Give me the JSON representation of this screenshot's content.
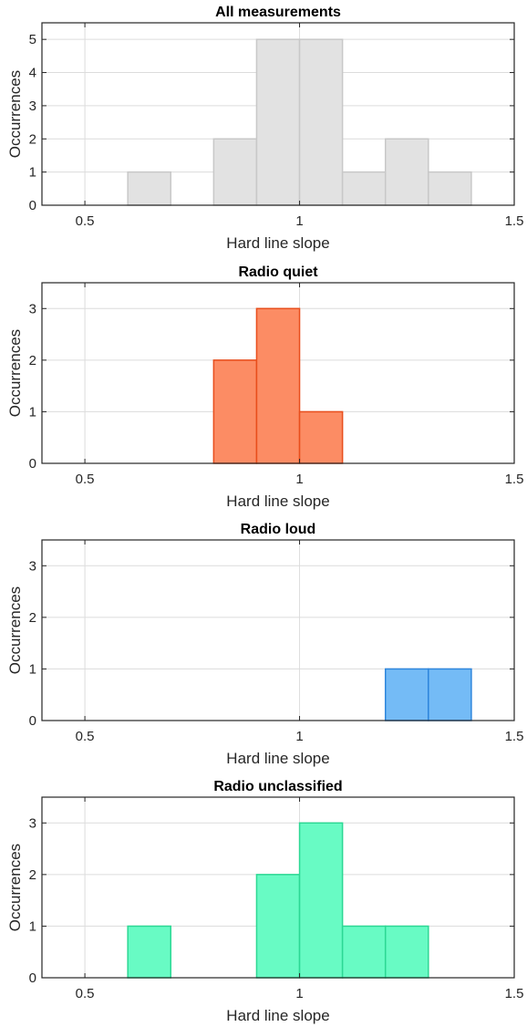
{
  "chart_data": [
    {
      "type": "bar",
      "title": "All measurements",
      "xlabel": "Hard line slope",
      "ylabel": "Occurrences",
      "xlim": [
        0.4,
        1.5
      ],
      "ylim": [
        0,
        5.5
      ],
      "xticks": [
        "0.5",
        "1",
        "1.5"
      ],
      "yticks": [
        "0",
        "1",
        "2",
        "3",
        "4",
        "5"
      ],
      "grid": true,
      "bin_edges": [
        0.6,
        0.7,
        0.8,
        0.9,
        1.0,
        1.1,
        1.2,
        1.3,
        1.4
      ],
      "values": [
        1,
        0,
        2,
        5,
        5,
        1,
        2,
        1
      ],
      "face_color": "#e2e2e2",
      "edge_color": "#c8c8c8"
    },
    {
      "type": "bar",
      "title": "Radio quiet",
      "xlabel": "Hard line slope",
      "ylabel": "Occurrences",
      "xlim": [
        0.4,
        1.5
      ],
      "ylim": [
        0,
        3.5
      ],
      "xticks": [
        "0.5",
        "1",
        "1.5"
      ],
      "yticks": [
        "0",
        "1",
        "2",
        "3"
      ],
      "grid": true,
      "bin_edges": [
        0.8,
        0.9,
        1.0,
        1.1
      ],
      "values": [
        2,
        3,
        1
      ],
      "face_color": "#fc8c64",
      "edge_color": "#e84e1c"
    },
    {
      "type": "bar",
      "title": "Radio loud",
      "xlabel": "Hard line slope",
      "ylabel": "Occurrences",
      "xlim": [
        0.4,
        1.5
      ],
      "ylim": [
        0,
        3.5
      ],
      "xticks": [
        "0.5",
        "1",
        "1.5"
      ],
      "yticks": [
        "0",
        "1",
        "2",
        "3"
      ],
      "grid": true,
      "bin_edges": [
        1.2,
        1.3,
        1.4
      ],
      "values": [
        1,
        1
      ],
      "face_color": "#74bbf6",
      "edge_color": "#2f86dc"
    },
    {
      "type": "bar",
      "title": "Radio unclassified",
      "xlabel": "Hard line slope",
      "ylabel": "Occurrences",
      "xlim": [
        0.4,
        1.5
      ],
      "ylim": [
        0,
        3.5
      ],
      "xticks": [
        "0.5",
        "1",
        "1.5"
      ],
      "yticks": [
        "0",
        "1",
        "2",
        "3"
      ],
      "grid": true,
      "bin_edges": [
        0.6,
        0.7,
        0.8,
        0.9,
        1.0,
        1.1,
        1.2,
        1.3
      ],
      "values": [
        1,
        0,
        0,
        2,
        3,
        1,
        1
      ],
      "face_color": "#68fbc4",
      "edge_color": "#2cd894"
    }
  ]
}
